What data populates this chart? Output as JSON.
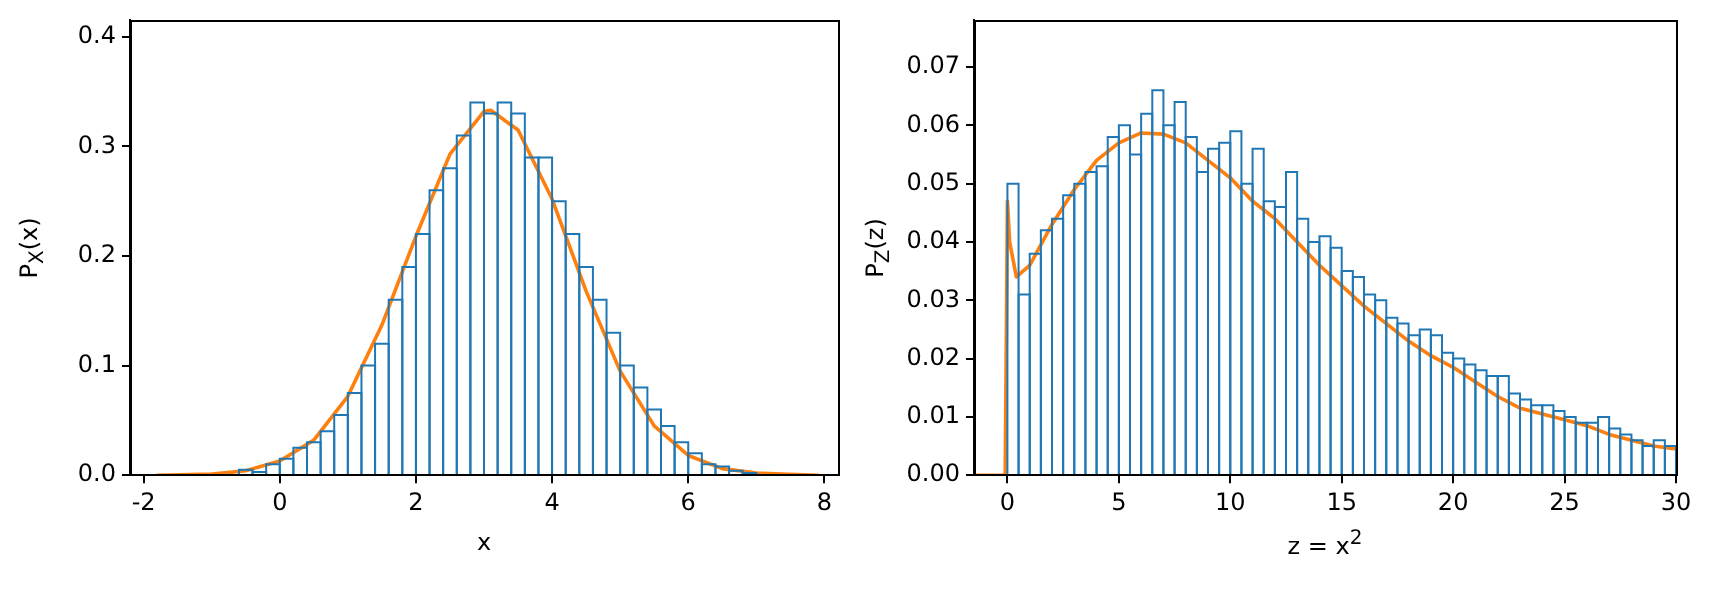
{
  "chart_data": [
    {
      "type": "histogram",
      "xlabel": "x",
      "ylabel": "P$_{X}$(x)",
      "xlim": [
        -2.2,
        8.2
      ],
      "xticks": [
        -2,
        0,
        2,
        4,
        6,
        8
      ],
      "ylim": [
        0,
        0.415
      ],
      "yticks": [
        {
          "value": 0,
          "label": "0.0"
        },
        {
          "value": 0.1,
          "label": "0.1"
        },
        {
          "value": 0.2,
          "label": "0.2"
        },
        {
          "value": 0.3,
          "label": "0.3"
        },
        {
          "value": 0.4,
          "label": "0.4"
        }
      ],
      "grid": false,
      "legend": false,
      "series": [
        {
          "color": "#1f77b4",
          "bins": [
            -0.6,
            -0.4,
            -0.2,
            0,
            0.2,
            0.4,
            0.6,
            0.8,
            1.0,
            1.2,
            1.4,
            1.6,
            1.8,
            2.0,
            2.2,
            2.4,
            2.6,
            2.8,
            3.0,
            3.2,
            3.4,
            3.6,
            3.8,
            4.0,
            4.2,
            4.4,
            4.6,
            4.8,
            5.0,
            5.2,
            5.4,
            5.6,
            5.8,
            6.0,
            6.2,
            6.4,
            6.6,
            6.8,
            7.0
          ],
          "values": [
            0.005,
            0.003,
            0.01,
            0.015,
            0.025,
            0.03,
            0.04,
            0.055,
            0.075,
            0.1,
            0.12,
            0.16,
            0.19,
            0.22,
            0.26,
            0.28,
            0.31,
            0.34,
            0.33,
            0.34,
            0.33,
            0.29,
            0.29,
            0.25,
            0.22,
            0.19,
            0.16,
            0.13,
            0.1,
            0.08,
            0.06,
            0.045,
            0.03,
            0.02,
            0.01,
            0.008,
            0.004,
            0.002
          ]
        },
        {
          "type": "line",
          "color": "#ff7f0e",
          "x": [
            -1.8,
            -1,
            -0.5,
            0,
            0.5,
            1,
            1.5,
            2,
            2.5,
            3,
            3.1,
            3.5,
            4,
            4.5,
            5,
            5.5,
            6,
            6.5,
            7,
            7.9
          ],
          "values": [
            0,
            0.001,
            0.004,
            0.013,
            0.032,
            0.072,
            0.137,
            0.218,
            0.293,
            0.332,
            0.333,
            0.315,
            0.252,
            0.168,
            0.095,
            0.045,
            0.018,
            0.006,
            0.002,
            0
          ]
        }
      ]
    },
    {
      "type": "histogram",
      "xlabel": "z = x$^{2}$",
      "ylabel": "P$_{Z}$(z)",
      "xlim": [
        -1.5,
        30
      ],
      "xticks": [
        0,
        5,
        10,
        15,
        20,
        25,
        30
      ],
      "ylim": [
        0,
        0.078
      ],
      "yticks": [
        {
          "value": 0,
          "label": "0.00"
        },
        {
          "value": 0.01,
          "label": "0.01"
        },
        {
          "value": 0.02,
          "label": "0.02"
        },
        {
          "value": 0.03,
          "label": "0.03"
        },
        {
          "value": 0.04,
          "label": "0.04"
        },
        {
          "value": 0.05,
          "label": "0.05"
        },
        {
          "value": 0.06,
          "label": "0.06"
        },
        {
          "value": 0.07,
          "label": "0.07"
        }
      ],
      "grid": false,
      "legend": false,
      "series": [
        {
          "color": "#1f77b4",
          "bins": [
            0,
            0.5,
            1,
            1.5,
            2,
            2.5,
            3,
            3.5,
            4,
            4.5,
            5,
            5.5,
            6,
            6.5,
            7,
            7.5,
            8,
            8.5,
            9,
            9.5,
            10,
            10.5,
            11,
            11.5,
            12,
            12.5,
            13,
            13.5,
            14,
            14.5,
            15,
            15.5,
            16,
            16.5,
            17,
            17.5,
            18,
            18.5,
            19,
            19.5,
            20,
            20.5,
            21,
            21.5,
            22,
            22.5,
            23,
            23.5,
            24,
            24.5,
            25,
            25.5,
            26,
            26.5,
            27,
            27.5,
            28,
            28.5,
            29,
            29.5,
            30
          ],
          "values": [
            0.05,
            0.031,
            0.038,
            0.042,
            0.044,
            0.048,
            0.05,
            0.052,
            0.053,
            0.058,
            0.06,
            0.055,
            0.062,
            0.066,
            0.06,
            0.064,
            0.058,
            0.052,
            0.056,
            0.057,
            0.059,
            0.05,
            0.056,
            0.047,
            0.046,
            0.052,
            0.044,
            0.04,
            0.041,
            0.039,
            0.035,
            0.034,
            0.031,
            0.03,
            0.027,
            0.026,
            0.024,
            0.025,
            0.024,
            0.021,
            0.02,
            0.019,
            0.018,
            0.017,
            0.017,
            0.014,
            0.013,
            0.012,
            0.012,
            0.011,
            0.01,
            0.009,
            0.009,
            0.01,
            0.008,
            0.007,
            0.006,
            0.005,
            0.006,
            0.005
          ]
        },
        {
          "type": "line",
          "color": "#ff7f0e",
          "x": [
            -1.5,
            -0.1,
            0,
            0.1,
            0.4,
            1,
            2,
            3,
            4,
            5,
            6,
            7,
            8,
            9,
            10,
            11,
            12,
            13,
            14,
            15,
            16,
            17,
            18,
            19,
            20,
            21,
            22,
            23,
            24,
            25,
            26,
            27,
            28,
            29,
            30
          ],
          "values": [
            0,
            0,
            0.047,
            0.04,
            0.034,
            0.036,
            0.043,
            0.049,
            0.054,
            0.057,
            0.0587,
            0.0585,
            0.057,
            0.054,
            0.051,
            0.047,
            0.044,
            0.04,
            0.036,
            0.0325,
            0.029,
            0.026,
            0.023,
            0.0205,
            0.0185,
            0.016,
            0.0135,
            0.0115,
            0.0105,
            0.0095,
            0.0085,
            0.007,
            0.006,
            0.005,
            0.0045
          ]
        }
      ]
    }
  ]
}
